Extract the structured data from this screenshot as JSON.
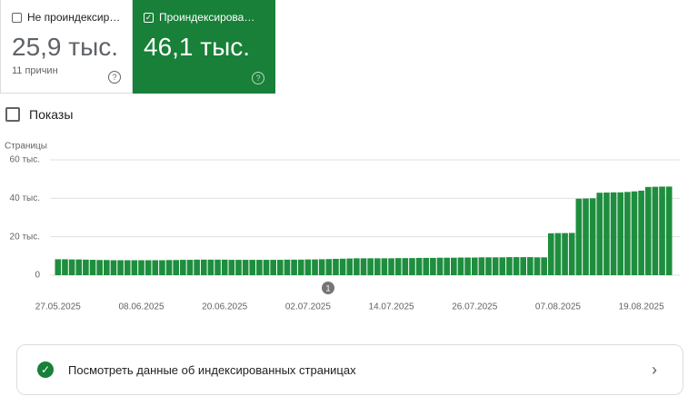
{
  "cards": [
    {
      "label": "Не проиндексир…",
      "value": "25,9 тыс.",
      "note": "11 причин"
    },
    {
      "label": "Проиндексирова…",
      "value": "46,1 тыс."
    }
  ],
  "impressions_label": "Показы",
  "chart_data": {
    "type": "bar",
    "y_label": "Страницы",
    "color": "#1e8e3e",
    "grid": true,
    "ylim": [
      0,
      60
    ],
    "yticks": [
      0,
      {
        "value": 20,
        "label": "20 тыс."
      },
      {
        "value": 40,
        "label": "40 тыс."
      },
      {
        "value": 60,
        "label": "60 тыс."
      }
    ],
    "annotation": "1",
    "categories": [
      "27.05.2025",
      null,
      null,
      null,
      null,
      null,
      null,
      null,
      null,
      null,
      null,
      null,
      "08.06.2025",
      null,
      null,
      null,
      null,
      null,
      null,
      null,
      null,
      null,
      null,
      null,
      "20.06.2025",
      null,
      null,
      null,
      null,
      null,
      null,
      null,
      null,
      null,
      null,
      null,
      "02.07.2025",
      null,
      null,
      null,
      null,
      null,
      null,
      null,
      null,
      null,
      null,
      null,
      "14.07.2025",
      null,
      null,
      null,
      null,
      null,
      null,
      null,
      null,
      null,
      null,
      null,
      "26.07.2025",
      null,
      null,
      null,
      null,
      null,
      null,
      null,
      null,
      null,
      null,
      null,
      "07.08.2025",
      null,
      null,
      null,
      null,
      null,
      null,
      null,
      null,
      null,
      null,
      null,
      "19.08.2025",
      null,
      null,
      null,
      null
    ],
    "values": [
      8.3,
      8.3,
      8.2,
      8.2,
      8.1,
      8.0,
      7.9,
      7.9,
      7.8,
      7.8,
      7.8,
      7.8,
      7.8,
      7.8,
      7.8,
      7.8,
      7.9,
      7.9,
      8.0,
      8.0,
      8.1,
      8.1,
      8.1,
      8.1,
      8.1,
      8.0,
      8.0,
      8.0,
      8.0,
      8.0,
      8.0,
      8.0,
      8.0,
      8.1,
      8.1,
      8.1,
      8.2,
      8.2,
      8.3,
      8.4,
      8.5,
      8.6,
      8.7,
      8.8,
      8.8,
      8.8,
      8.8,
      8.8,
      8.8,
      8.9,
      8.9,
      8.9,
      9.0,
      9.0,
      9.0,
      9.1,
      9.1,
      9.1,
      9.2,
      9.2,
      9.2,
      9.3,
      9.3,
      9.3,
      9.3,
      9.4,
      9.4,
      9.4,
      9.4,
      9.3,
      9.3,
      21.8,
      21.9,
      21.9,
      22.0,
      39.8,
      39.9,
      40.0,
      42.9,
      43.0,
      43.1,
      43.1,
      43.3,
      43.6,
      44.0,
      45.9,
      46.0,
      46.1,
      46.1
    ]
  },
  "link": {
    "text": "Посмотреть данные об индексированных страницах"
  }
}
